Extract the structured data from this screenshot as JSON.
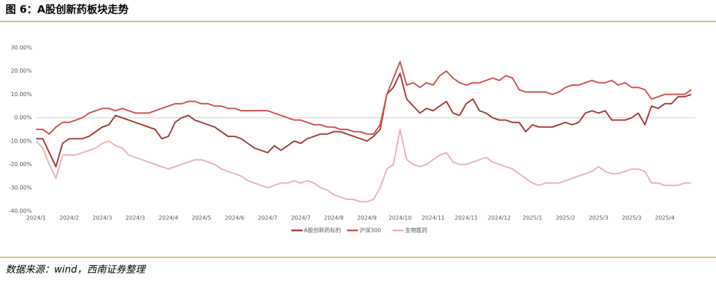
{
  "header": {
    "title": "图 6：A股创新药板块走势"
  },
  "footer": {
    "source": "数据来源：wind，西南证券整理"
  },
  "chart_data": {
    "type": "line",
    "series": [
      {
        "name": "A股创新药标的",
        "color": "#a0393a",
        "values": [
          -9,
          -9,
          -15,
          -21,
          -11,
          -9,
          -9,
          -9,
          -8,
          -6,
          -4,
          -3,
          1,
          0,
          -1,
          -2,
          -3,
          -4,
          -5,
          -9,
          -8,
          -2,
          0,
          1,
          -1,
          -2,
          -3,
          -4,
          -6,
          -8,
          -8,
          -9,
          -11,
          -13,
          -14,
          -15,
          -12,
          -14,
          -12,
          -10,
          -11,
          -9,
          -8,
          -7,
          -7,
          -6,
          -6,
          -7,
          -8,
          -9,
          -10,
          -8,
          -5,
          10,
          13,
          19,
          8,
          5,
          2,
          4,
          3,
          5,
          7,
          2,
          1,
          6,
          8,
          3,
          2,
          0,
          -1,
          -1,
          -2,
          -2,
          -6,
          -3,
          -4,
          -4,
          -4,
          -3,
          -2,
          -3,
          -2,
          2,
          3,
          2,
          3,
          -1,
          -1,
          -1,
          0,
          2,
          -3,
          5,
          4,
          6,
          6,
          9,
          9,
          10
        ]
      },
      {
        "name": "沪深300",
        "color": "#cf4e4e",
        "values": [
          -5,
          -5,
          -7,
          -4,
          -2,
          -2,
          -1,
          0,
          2,
          3,
          4,
          4,
          3,
          4,
          3,
          2,
          2,
          2,
          3,
          4,
          5,
          6,
          6,
          7,
          7,
          6,
          6,
          5,
          5,
          4,
          4,
          3,
          3,
          3,
          3,
          3,
          2,
          1,
          0,
          -1,
          -1,
          -2,
          -3,
          -3,
          -4,
          -4,
          -5,
          -5,
          -6,
          -6,
          -7,
          -7,
          -3,
          10,
          17,
          24,
          14,
          15,
          13,
          15,
          14,
          18,
          20,
          17,
          15,
          14,
          15,
          15,
          16,
          17,
          16,
          18,
          17,
          12,
          11,
          11,
          11,
          11,
          10,
          11,
          13,
          14,
          14,
          15,
          16,
          15,
          15,
          16,
          14,
          15,
          13,
          13,
          12,
          8,
          9,
          10,
          10,
          10,
          10,
          12
        ]
      },
      {
        "name": "生物医药",
        "color": "#e8b4b3",
        "values": [
          -10,
          -13,
          -20,
          -26,
          -16,
          -16,
          -16,
          -15,
          -14,
          -13,
          -11,
          -10,
          -12,
          -13,
          -16,
          -17,
          -18,
          -19,
          -20,
          -21,
          -22,
          -21,
          -20,
          -19,
          -18,
          -18,
          -19,
          -20,
          -22,
          -23,
          -24,
          -25,
          -27,
          -28,
          -29,
          -30,
          -29,
          -28,
          -28,
          -27,
          -28,
          -27,
          -28,
          -30,
          -31,
          -33,
          -34,
          -35,
          -35,
          -36,
          -36,
          -35,
          -30,
          -22,
          -20,
          -5,
          -18,
          -20,
          -21,
          -20,
          -18,
          -16,
          -15,
          -19,
          -20,
          -20,
          -19,
          -18,
          -17,
          -19,
          -20,
          -21,
          -22,
          -24,
          -26,
          -28,
          -29,
          -28,
          -28,
          -28,
          -27,
          -26,
          -25,
          -24,
          -23,
          -21,
          -23,
          -24,
          -24,
          -23,
          -22,
          -22,
          -23,
          -28,
          -28,
          -29,
          -29,
          -29,
          -28,
          -28
        ]
      }
    ],
    "xlim": [
      0,
      99.6
    ],
    "xticks": [
      {
        "value": 0,
        "label": "2024/1"
      },
      {
        "value": 5,
        "label": "2024/2"
      },
      {
        "value": 10,
        "label": "2024/3"
      },
      {
        "value": 15,
        "label": "2024/3"
      },
      {
        "value": 20,
        "label": "2024/4"
      },
      {
        "value": 25,
        "label": "2024/5"
      },
      {
        "value": 30,
        "label": "2024/6"
      },
      {
        "value": 35,
        "label": "2024/7"
      },
      {
        "value": 40,
        "label": "2024/7"
      },
      {
        "value": 45,
        "label": "2024/8"
      },
      {
        "value": 50,
        "label": "2024/9"
      },
      {
        "value": 55,
        "label": "2024/10"
      },
      {
        "value": 60,
        "label": "2024/11"
      },
      {
        "value": 65,
        "label": "2024/11"
      },
      {
        "value": 70,
        "label": "2024/12"
      },
      {
        "value": 75,
        "label": "2025/1"
      },
      {
        "value": 80,
        "label": "2025/2"
      },
      {
        "value": 85,
        "label": "2025/3"
      },
      {
        "value": 90,
        "label": "2025/3"
      },
      {
        "value": 95,
        "label": "2025/4"
      }
    ],
    "ylim": [
      -40,
      30
    ],
    "yticks": [
      {
        "value": -40,
        "label": "-40.00%"
      },
      {
        "value": -30,
        "label": "-30.00%"
      },
      {
        "value": -20,
        "label": "-20.00%"
      },
      {
        "value": -10,
        "label": "-10.00%"
      },
      {
        "value": 0,
        "label": "0.00%"
      },
      {
        "value": 10,
        "label": "10.00%"
      },
      {
        "value": 20,
        "label": "20.00%"
      },
      {
        "value": 30,
        "label": "30.00%"
      }
    ]
  }
}
